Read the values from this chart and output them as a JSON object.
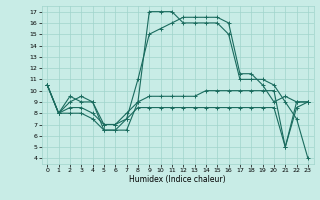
{
  "title": "",
  "xlabel": "Humidex (Indice chaleur)",
  "xlim": [
    -0.5,
    23.5
  ],
  "ylim": [
    3.5,
    17.5
  ],
  "yticks": [
    4,
    5,
    6,
    7,
    8,
    9,
    10,
    11,
    12,
    13,
    14,
    15,
    16,
    17
  ],
  "xticks": [
    0,
    1,
    2,
    3,
    4,
    5,
    6,
    7,
    8,
    9,
    10,
    11,
    12,
    13,
    14,
    15,
    16,
    17,
    18,
    19,
    20,
    21,
    22,
    23
  ],
  "bg_color": "#c8ece6",
  "line_color": "#1a6b5e",
  "grid_color": "#a0d4cc",
  "lines": [
    [
      10.5,
      8.0,
      9.0,
      9.5,
      9.0,
      6.5,
      6.5,
      6.5,
      9.0,
      17.0,
      17.0,
      17.0,
      16.0,
      16.0,
      16.0,
      16.0,
      15.0,
      11.0,
      11.0,
      11.0,
      10.5,
      9.0,
      7.5,
      4.0
    ],
    [
      10.5,
      8.0,
      9.5,
      9.0,
      9.0,
      7.0,
      7.0,
      7.5,
      11.0,
      15.0,
      15.5,
      16.0,
      16.5,
      16.5,
      16.5,
      16.5,
      16.0,
      11.5,
      11.5,
      10.5,
      9.0,
      9.5,
      9.0,
      9.0
    ],
    [
      10.5,
      8.0,
      8.5,
      8.5,
      8.0,
      7.0,
      7.0,
      8.0,
      9.0,
      9.5,
      9.5,
      9.5,
      9.5,
      9.5,
      10.0,
      10.0,
      10.0,
      10.0,
      10.0,
      10.0,
      10.0,
      5.0,
      8.5,
      9.0
    ],
    [
      10.5,
      8.0,
      8.0,
      8.0,
      7.5,
      6.5,
      6.5,
      7.5,
      8.5,
      8.5,
      8.5,
      8.5,
      8.5,
      8.5,
      8.5,
      8.5,
      8.5,
      8.5,
      8.5,
      8.5,
      8.5,
      5.0,
      9.0,
      9.0
    ]
  ]
}
